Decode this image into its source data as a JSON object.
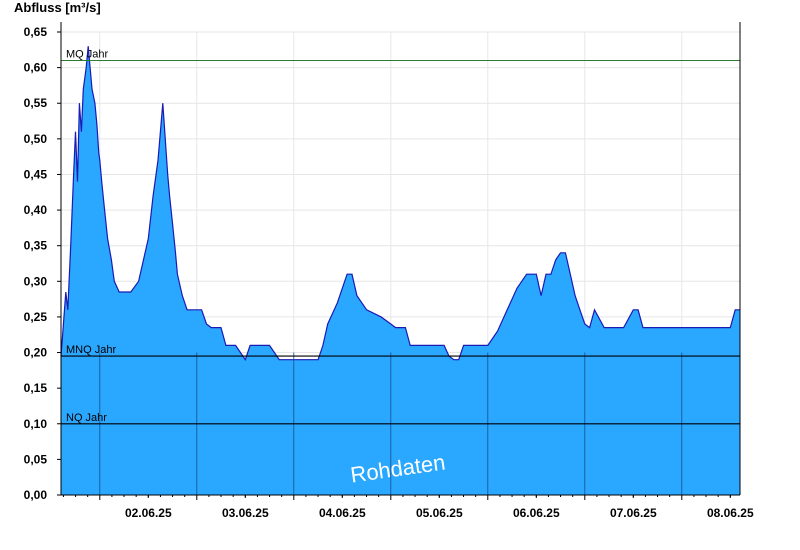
{
  "chart_data": {
    "type": "area",
    "ylabel": "Abfluss [m³/s]",
    "xlabel": "",
    "title": "",
    "ylim": [
      0,
      0.65
    ],
    "x_ticks": [
      "02.06.25",
      "03.06.25",
      "04.06.25",
      "05.06.25",
      "06.06.25",
      "07.06.25",
      "08.06.25"
    ],
    "y_ticks": [
      "0,00",
      "0,05",
      "0,10",
      "0,15",
      "0,20",
      "0,25",
      "0,30",
      "0,35",
      "0,40",
      "0,45",
      "0,50",
      "0,55",
      "0,60",
      "0,65"
    ],
    "x_range_days": [
      1.6,
      8.6
    ],
    "grid": true,
    "fill_color": "#2aa7ff",
    "line_color": "#1a1ab4",
    "reference_lines": [
      {
        "label": "MQ Jahr",
        "value": 0.61,
        "color": "#2e7d32"
      },
      {
        "label": "MNQ Jahr",
        "value": 0.195,
        "color": "#000000"
      },
      {
        "label": "NQ Jahr",
        "value": 0.1,
        "color": "#000000"
      }
    ],
    "watermark": "Rohdaten",
    "series": [
      {
        "values_x_days": [
          1.6,
          1.62,
          1.65,
          1.67,
          1.7,
          1.73,
          1.75,
          1.77,
          1.79,
          1.81,
          1.83,
          1.86,
          1.88,
          1.9,
          1.92,
          1.95,
          1.97,
          1.99,
          2.0,
          2.02,
          2.05,
          2.08,
          2.12,
          2.15,
          2.2,
          2.25,
          2.3,
          2.32,
          2.4,
          2.5,
          2.55,
          2.6,
          2.65,
          2.7,
          2.72,
          2.75,
          2.78,
          2.8,
          2.85,
          2.9,
          2.95,
          3.0,
          3.05,
          3.1,
          3.15,
          3.2,
          3.25,
          3.3,
          3.4,
          3.5,
          3.55,
          3.6,
          3.65,
          3.75,
          3.85,
          3.95,
          4.0,
          4.05,
          4.1,
          4.15,
          4.25,
          4.3,
          4.35,
          4.45,
          4.55,
          4.6,
          4.65,
          4.75,
          4.9,
          5.0,
          5.05,
          5.1,
          5.15,
          5.2,
          5.25,
          5.3,
          5.35,
          5.4,
          5.45,
          5.5,
          5.55,
          5.6,
          5.65,
          5.7,
          5.75,
          5.85,
          6.0,
          6.1,
          6.2,
          6.3,
          6.4,
          6.5,
          6.55,
          6.6,
          6.65,
          6.7,
          6.75,
          6.8,
          6.85,
          6.9,
          6.95,
          7.0,
          7.05,
          7.1,
          7.2,
          7.3,
          7.35,
          7.4,
          7.5,
          7.55,
          7.6,
          7.65,
          7.7,
          7.75,
          7.8,
          7.85,
          7.9,
          7.95,
          8.0,
          8.05,
          8.1,
          8.15,
          8.2,
          8.3,
          8.4,
          8.5,
          8.55,
          8.6
        ],
        "values": [
          0.195,
          0.23,
          0.285,
          0.26,
          0.35,
          0.45,
          0.51,
          0.44,
          0.55,
          0.51,
          0.57,
          0.6,
          0.63,
          0.6,
          0.57,
          0.55,
          0.52,
          0.48,
          0.47,
          0.44,
          0.4,
          0.36,
          0.33,
          0.3,
          0.285,
          0.285,
          0.285,
          0.285,
          0.3,
          0.36,
          0.42,
          0.47,
          0.55,
          0.45,
          0.42,
          0.38,
          0.34,
          0.31,
          0.28,
          0.26,
          0.26,
          0.26,
          0.26,
          0.24,
          0.235,
          0.235,
          0.235,
          0.21,
          0.21,
          0.19,
          0.21,
          0.21,
          0.21,
          0.21,
          0.19,
          0.19,
          0.19,
          0.19,
          0.19,
          0.19,
          0.19,
          0.21,
          0.24,
          0.27,
          0.31,
          0.31,
          0.28,
          0.26,
          0.25,
          0.24,
          0.235,
          0.235,
          0.235,
          0.21,
          0.21,
          0.21,
          0.21,
          0.21,
          0.21,
          0.21,
          0.21,
          0.195,
          0.19,
          0.19,
          0.21,
          0.21,
          0.21,
          0.23,
          0.26,
          0.29,
          0.31,
          0.31,
          0.28,
          0.31,
          0.31,
          0.33,
          0.34,
          0.34,
          0.31,
          0.28,
          0.26,
          0.24,
          0.235,
          0.26,
          0.235,
          0.235,
          0.235,
          0.235,
          0.26,
          0.26,
          0.235,
          0.235,
          0.235,
          0.235,
          0.235,
          0.235,
          0.235,
          0.235,
          0.235,
          0.235,
          0.235,
          0.235,
          0.235,
          0.235,
          0.235,
          0.235,
          0.26,
          0.26
        ]
      }
    ]
  }
}
